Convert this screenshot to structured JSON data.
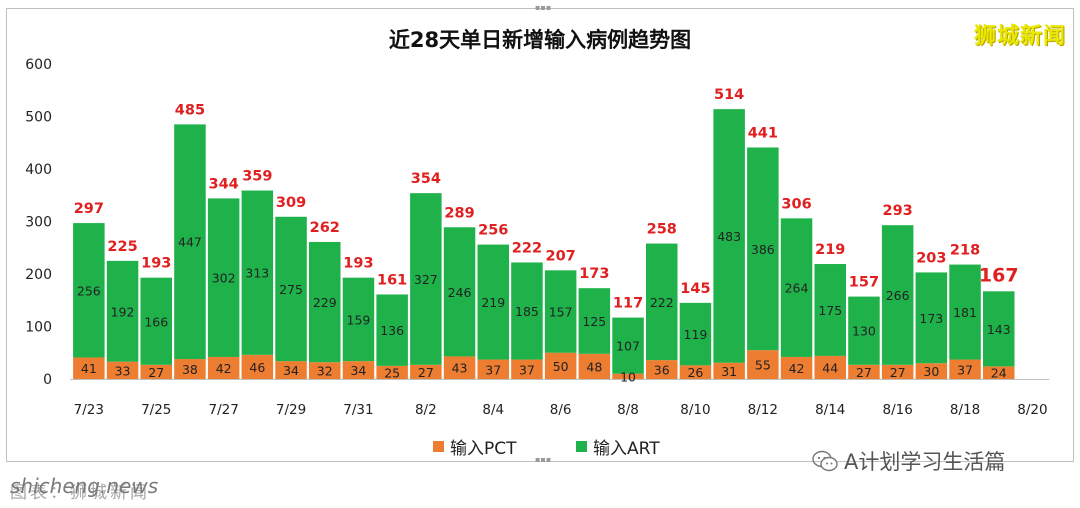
{
  "title": "近28天单日新增输入病例趋势图",
  "brand": "狮城新闻",
  "watermark_site": "shicheng.news",
  "watermark_source": "图表：狮城新闻",
  "wechat_label": "A计划学习生活篇",
  "colors": {
    "pct": "#ed7d31",
    "art": "#1fb24a",
    "total_label": "#e02020",
    "inner_label": "#222222"
  },
  "legend": [
    {
      "name": "输入PCT",
      "color": "#ed7d31"
    },
    {
      "name": "输入ART",
      "color": "#1fb24a"
    }
  ],
  "chart_data": {
    "type": "bar",
    "stacked": true,
    "title": "近28天单日新增输入病例趋势图",
    "ylim": [
      0,
      600
    ],
    "yticks": [
      0,
      100,
      200,
      300,
      400,
      500,
      600
    ],
    "grid": false,
    "legend_position": "bottom",
    "x_tick_labels": [
      "7/23",
      "7/25",
      "7/27",
      "7/29",
      "7/31",
      "8/2",
      "8/4",
      "8/6",
      "8/8",
      "8/10",
      "8/12",
      "8/14",
      "8/16",
      "8/18",
      "8/20"
    ],
    "categories": [
      "7/23",
      "7/24",
      "7/25",
      "7/26",
      "7/27",
      "7/28",
      "7/29",
      "7/30",
      "7/31",
      "8/1",
      "8/2",
      "8/3",
      "8/4",
      "8/5",
      "8/6",
      "8/7",
      "8/8",
      "8/9",
      "8/10",
      "8/11",
      "8/12",
      "8/13",
      "8/14",
      "8/15",
      "8/16",
      "8/17",
      "8/18",
      "8/19"
    ],
    "series": [
      {
        "name": "输入PCT",
        "values": [
          41,
          33,
          27,
          38,
          42,
          46,
          34,
          32,
          34,
          25,
          27,
          43,
          37,
          37,
          50,
          48,
          10,
          36,
          26,
          31,
          55,
          42,
          44,
          27,
          27,
          30,
          37,
          24
        ]
      },
      {
        "name": "输入ART",
        "values": [
          256,
          192,
          166,
          447,
          302,
          313,
          275,
          229,
          159,
          136,
          327,
          246,
          219,
          185,
          157,
          125,
          107,
          222,
          119,
          483,
          386,
          264,
          175,
          130,
          266,
          173,
          181,
          143
        ]
      }
    ],
    "totals": [
      297,
      225,
      193,
      485,
      344,
      359,
      309,
      262,
      193,
      161,
      354,
      289,
      256,
      222,
      207,
      173,
      117,
      258,
      145,
      514,
      441,
      306,
      219,
      157,
      293,
      203,
      218,
      167
    ]
  }
}
